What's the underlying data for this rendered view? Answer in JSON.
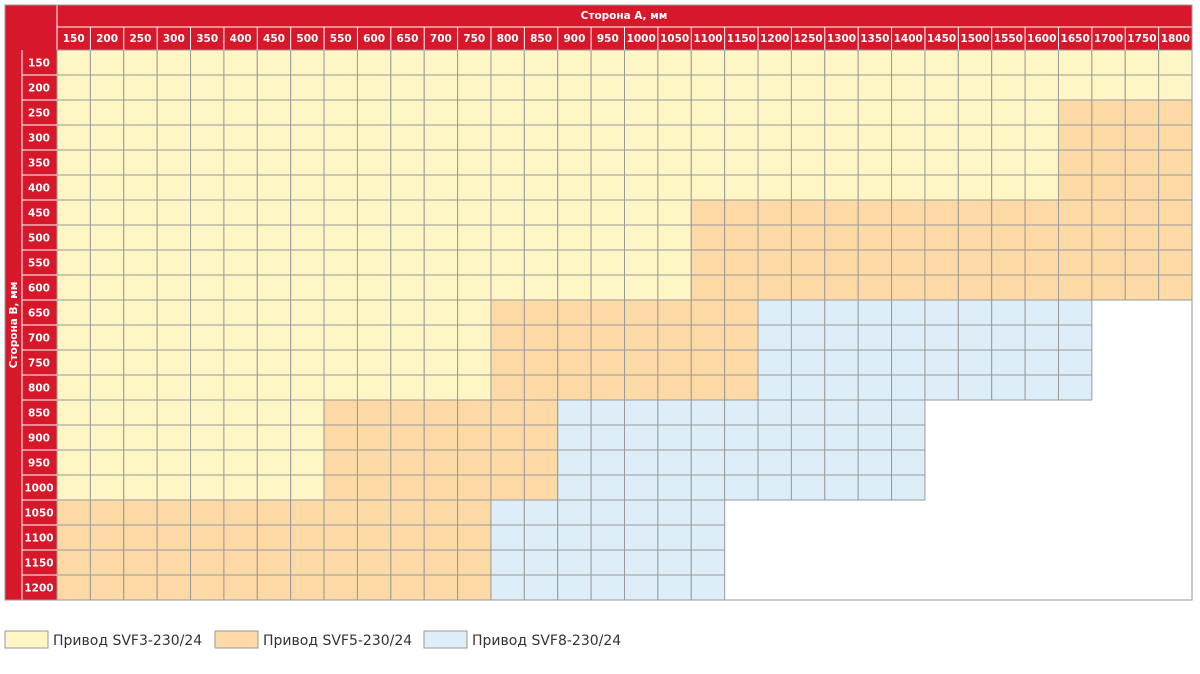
{
  "header": {
    "title_a": "Сторона А, мм",
    "title_b": "Сторона B, мм"
  },
  "table": {
    "columns": [
      150,
      200,
      250,
      300,
      350,
      400,
      450,
      500,
      550,
      600,
      650,
      700,
      750,
      800,
      850,
      900,
      950,
      1000,
      1050,
      1100,
      1150,
      1200,
      1250,
      1300,
      1350,
      1400,
      1450,
      1500,
      1550,
      1600,
      1650,
      1700,
      1750,
      1800
    ],
    "rows": [
      {
        "label": 150,
        "cells": [
          0,
          0,
          0,
          0,
          0,
          0,
          0,
          0,
          0,
          0,
          0,
          0,
          0,
          0,
          0,
          0,
          0,
          0,
          0,
          0,
          0,
          0,
          0,
          0,
          0,
          0,
          0,
          0,
          0,
          0,
          0,
          0,
          0,
          0
        ]
      },
      {
        "label": 200,
        "cells": [
          0,
          0,
          0,
          0,
          0,
          0,
          0,
          0,
          0,
          0,
          0,
          0,
          0,
          0,
          0,
          0,
          0,
          0,
          0,
          0,
          0,
          0,
          0,
          0,
          0,
          0,
          0,
          0,
          0,
          0,
          0,
          0,
          0,
          0
        ]
      },
      {
        "label": 250,
        "cells": [
          0,
          0,
          0,
          0,
          0,
          0,
          0,
          0,
          0,
          0,
          0,
          0,
          0,
          0,
          0,
          0,
          0,
          0,
          0,
          0,
          0,
          0,
          0,
          0,
          0,
          0,
          0,
          0,
          0,
          0,
          1,
          1,
          1,
          1
        ]
      },
      {
        "label": 300,
        "cells": [
          0,
          0,
          0,
          0,
          0,
          0,
          0,
          0,
          0,
          0,
          0,
          0,
          0,
          0,
          0,
          0,
          0,
          0,
          0,
          0,
          0,
          0,
          0,
          0,
          0,
          0,
          0,
          0,
          0,
          0,
          1,
          1,
          1,
          1
        ]
      },
      {
        "label": 350,
        "cells": [
          0,
          0,
          0,
          0,
          0,
          0,
          0,
          0,
          0,
          0,
          0,
          0,
          0,
          0,
          0,
          0,
          0,
          0,
          0,
          0,
          0,
          0,
          0,
          0,
          0,
          0,
          0,
          0,
          0,
          0,
          1,
          1,
          1,
          1
        ]
      },
      {
        "label": 400,
        "cells": [
          0,
          0,
          0,
          0,
          0,
          0,
          0,
          0,
          0,
          0,
          0,
          0,
          0,
          0,
          0,
          0,
          0,
          0,
          0,
          0,
          0,
          0,
          0,
          0,
          0,
          0,
          0,
          0,
          0,
          0,
          1,
          1,
          1,
          1
        ]
      },
      {
        "label": 450,
        "cells": [
          0,
          0,
          0,
          0,
          0,
          0,
          0,
          0,
          0,
          0,
          0,
          0,
          0,
          0,
          0,
          0,
          0,
          0,
          0,
          1,
          1,
          1,
          1,
          1,
          1,
          1,
          1,
          1,
          1,
          1,
          1,
          1,
          1,
          1
        ]
      },
      {
        "label": 500,
        "cells": [
          0,
          0,
          0,
          0,
          0,
          0,
          0,
          0,
          0,
          0,
          0,
          0,
          0,
          0,
          0,
          0,
          0,
          0,
          0,
          1,
          1,
          1,
          1,
          1,
          1,
          1,
          1,
          1,
          1,
          1,
          1,
          1,
          1,
          1
        ]
      },
      {
        "label": 550,
        "cells": [
          0,
          0,
          0,
          0,
          0,
          0,
          0,
          0,
          0,
          0,
          0,
          0,
          0,
          0,
          0,
          0,
          0,
          0,
          0,
          1,
          1,
          1,
          1,
          1,
          1,
          1,
          1,
          1,
          1,
          1,
          1,
          1,
          1,
          1
        ]
      },
      {
        "label": 600,
        "cells": [
          0,
          0,
          0,
          0,
          0,
          0,
          0,
          0,
          0,
          0,
          0,
          0,
          0,
          0,
          0,
          0,
          0,
          0,
          0,
          1,
          1,
          1,
          1,
          1,
          1,
          1,
          1,
          1,
          1,
          1,
          1,
          1,
          1,
          1
        ]
      },
      {
        "label": 650,
        "cells": [
          0,
          0,
          0,
          0,
          0,
          0,
          0,
          0,
          0,
          0,
          0,
          0,
          0,
          1,
          1,
          1,
          1,
          1,
          1,
          1,
          1,
          2,
          2,
          2,
          2,
          2,
          2,
          2,
          2,
          2,
          2,
          null,
          null,
          null
        ]
      },
      {
        "label": 700,
        "cells": [
          0,
          0,
          0,
          0,
          0,
          0,
          0,
          0,
          0,
          0,
          0,
          0,
          0,
          1,
          1,
          1,
          1,
          1,
          1,
          1,
          1,
          2,
          2,
          2,
          2,
          2,
          2,
          2,
          2,
          2,
          2,
          null,
          null,
          null
        ]
      },
      {
        "label": 750,
        "cells": [
          0,
          0,
          0,
          0,
          0,
          0,
          0,
          0,
          0,
          0,
          0,
          0,
          0,
          1,
          1,
          1,
          1,
          1,
          1,
          1,
          1,
          2,
          2,
          2,
          2,
          2,
          2,
          2,
          2,
          2,
          2,
          null,
          null,
          null
        ]
      },
      {
        "label": 800,
        "cells": [
          0,
          0,
          0,
          0,
          0,
          0,
          0,
          0,
          0,
          0,
          0,
          0,
          0,
          1,
          1,
          1,
          1,
          1,
          1,
          1,
          1,
          2,
          2,
          2,
          2,
          2,
          2,
          2,
          2,
          2,
          2,
          null,
          null,
          null
        ]
      },
      {
        "label": 850,
        "cells": [
          0,
          0,
          0,
          0,
          0,
          0,
          0,
          0,
          1,
          1,
          1,
          1,
          1,
          1,
          1,
          2,
          2,
          2,
          2,
          2,
          2,
          2,
          2,
          2,
          2,
          2,
          null,
          null,
          null,
          null,
          null,
          null,
          null,
          null
        ]
      },
      {
        "label": 900,
        "cells": [
          0,
          0,
          0,
          0,
          0,
          0,
          0,
          0,
          1,
          1,
          1,
          1,
          1,
          1,
          1,
          2,
          2,
          2,
          2,
          2,
          2,
          2,
          2,
          2,
          2,
          2,
          null,
          null,
          null,
          null,
          null,
          null,
          null,
          null
        ]
      },
      {
        "label": 950,
        "cells": [
          0,
          0,
          0,
          0,
          0,
          0,
          0,
          0,
          1,
          1,
          1,
          1,
          1,
          1,
          1,
          2,
          2,
          2,
          2,
          2,
          2,
          2,
          2,
          2,
          2,
          2,
          null,
          null,
          null,
          null,
          null,
          null,
          null,
          null
        ]
      },
      {
        "label": 1000,
        "cells": [
          0,
          0,
          0,
          0,
          0,
          0,
          0,
          0,
          1,
          1,
          1,
          1,
          1,
          1,
          1,
          2,
          2,
          2,
          2,
          2,
          2,
          2,
          2,
          2,
          2,
          2,
          null,
          null,
          null,
          null,
          null,
          null,
          null,
          null
        ]
      },
      {
        "label": 1050,
        "cells": [
          1,
          1,
          1,
          1,
          1,
          1,
          1,
          1,
          1,
          1,
          1,
          1,
          1,
          2,
          2,
          2,
          2,
          2,
          2,
          2,
          null,
          null,
          null,
          null,
          null,
          null,
          null,
          null,
          null,
          null,
          null,
          null,
          null,
          null
        ]
      },
      {
        "label": 1100,
        "cells": [
          1,
          1,
          1,
          1,
          1,
          1,
          1,
          1,
          1,
          1,
          1,
          1,
          1,
          2,
          2,
          2,
          2,
          2,
          2,
          2,
          null,
          null,
          null,
          null,
          null,
          null,
          null,
          null,
          null,
          null,
          null,
          null,
          null,
          null
        ]
      },
      {
        "label": 1150,
        "cells": [
          1,
          1,
          1,
          1,
          1,
          1,
          1,
          1,
          1,
          1,
          1,
          1,
          1,
          2,
          2,
          2,
          2,
          2,
          2,
          2,
          null,
          null,
          null,
          null,
          null,
          null,
          null,
          null,
          null,
          null,
          null,
          null,
          null,
          null
        ]
      },
      {
        "label": 1200,
        "cells": [
          1,
          1,
          1,
          1,
          1,
          1,
          1,
          1,
          1,
          1,
          1,
          1,
          1,
          2,
          2,
          2,
          2,
          2,
          2,
          2,
          null,
          null,
          null,
          null,
          null,
          null,
          null,
          null,
          null,
          null,
          null,
          null,
          null,
          null
        ]
      }
    ]
  },
  "legend": [
    {
      "label": "Привод SVF3-230/24",
      "color": "#fff6c6"
    },
    {
      "label": "Привод SVF5-230/24",
      "color": "#fdd9a5"
    },
    {
      "label": "Привод SVF8-230/24",
      "color": "#ddeef9"
    }
  ]
}
